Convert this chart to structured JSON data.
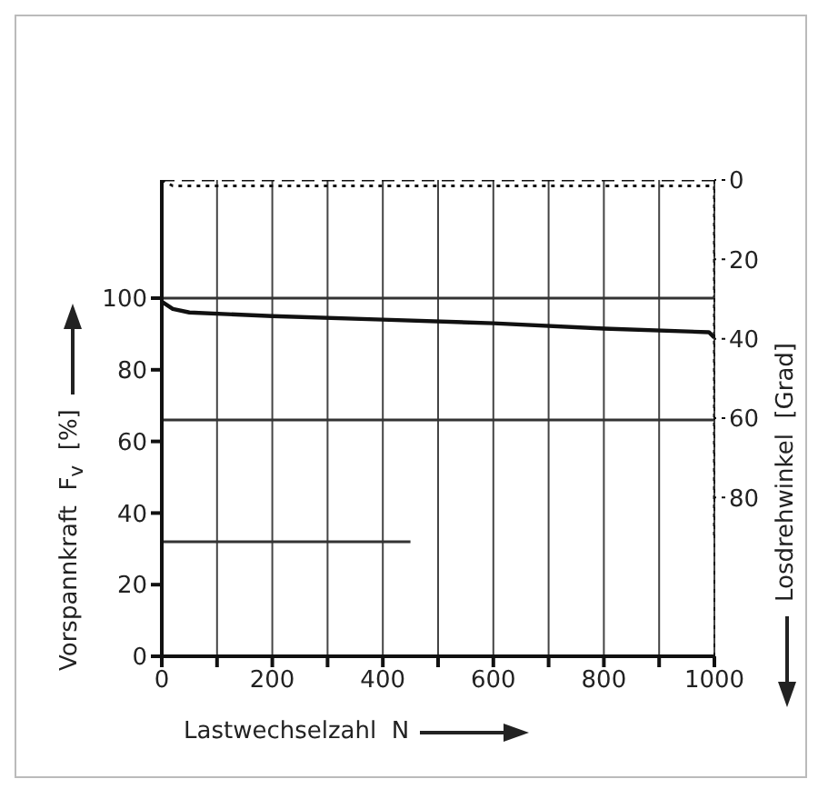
{
  "chart_data": {
    "type": "line",
    "xlabel": "Lastwechselzahl  N",
    "ylabel": "Vorspannkraft  F$_{v}$  [%]",
    "y2label": "Losdrehwinkel  [Grad]",
    "xlim": [
      0,
      1000
    ],
    "xticks": [
      0,
      {
        "value": 100,
        "label": null
      },
      200,
      {
        "value": 300,
        "label": null
      },
      400,
      {
        "value": 500,
        "label": null
      },
      600,
      {
        "value": 700,
        "label": null
      },
      800,
      {
        "value": 900,
        "label": null
      },
      1000
    ],
    "ylim": [
      0,
      133
    ],
    "yticks": [
      0,
      20,
      40,
      60,
      80,
      100
    ],
    "y2lim": [
      120,
      0
    ],
    "y2ticks": [
      0,
      20,
      40,
      60,
      80
    ],
    "grid": "x",
    "series": [
      {
        "color": "#111111",
        "line_style": "solid",
        "x": [
          0,
          20,
          50,
          200,
          400,
          600,
          800,
          990,
          1000
        ],
        "values": [
          99,
          97,
          96,
          95,
          94,
          93,
          91.5,
          90.5,
          89
        ]
      },
      {
        "color": "#111111",
        "line_style": "dashed",
        "axis": "y2",
        "x": [
          0,
          1000
        ],
        "values": [
          0,
          0
        ]
      },
      {
        "color": "#111111",
        "line_style": "dotted",
        "axis": "y2",
        "x": [
          0,
          20,
          1000,
          1000
        ],
        "values": [
          0,
          1.5,
          1.5,
          90
        ]
      },
      {
        "color": "#333333",
        "line_style": "solid",
        "x": [
          0,
          1000
        ],
        "values": [
          100,
          100
        ]
      },
      {
        "color": "#333333",
        "line_style": "solid",
        "x": [
          0,
          1000
        ],
        "values": [
          66,
          66
        ]
      },
      {
        "color": "#333333",
        "line_style": "solid",
        "x": [
          0,
          450
        ],
        "values": [
          32,
          32
        ]
      }
    ]
  }
}
